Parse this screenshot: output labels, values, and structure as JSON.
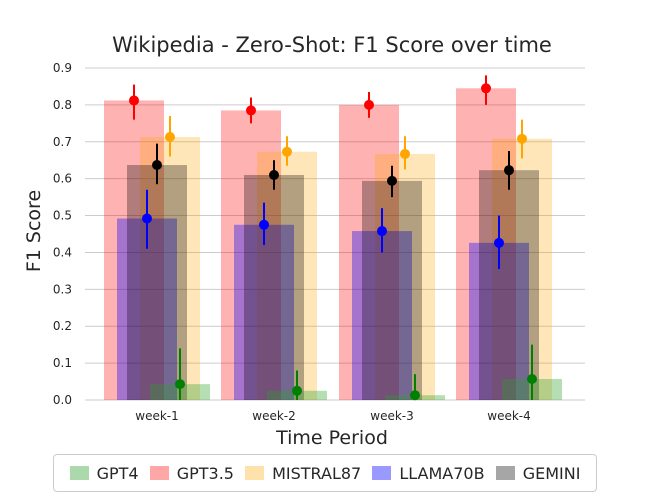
{
  "chart_data": {
    "type": "bar",
    "title": "Wikipedia - Zero-Shot: F1 Score over time",
    "xlabel": "Time Period",
    "ylabel": "F1 Score",
    "categories": [
      "week-1",
      "week-2",
      "week-3",
      "week-4"
    ],
    "ylim": [
      0,
      0.9
    ],
    "yticks": [
      "0.0",
      "0.1",
      "0.2",
      "0.3",
      "0.4",
      "0.5",
      "0.6",
      "0.7",
      "0.8",
      "0.9"
    ],
    "grid": "horizontal",
    "legend_position": "bottom",
    "series": [
      {
        "name": "GPT4",
        "color": "#2ca02c",
        "point_color": "#008000",
        "values": [
          0.043,
          0.025,
          0.013,
          0.057
        ],
        "err_low": [
          0.0,
          0.0,
          0.0,
          0.0
        ],
        "err_high": [
          0.14,
          0.08,
          0.07,
          0.15
        ]
      },
      {
        "name": "GPT3.5",
        "color": "#ff0000",
        "point_color": "#ff0000",
        "values": [
          0.812,
          0.785,
          0.8,
          0.845
        ],
        "err_low": [
          0.76,
          0.75,
          0.765,
          0.8
        ],
        "err_high": [
          0.855,
          0.82,
          0.835,
          0.88
        ]
      },
      {
        "name": "MISTRAL87",
        "color": "#ffa500",
        "point_color": "#ffa500",
        "values": [
          0.713,
          0.673,
          0.667,
          0.708
        ],
        "err_low": [
          0.66,
          0.635,
          0.625,
          0.655
        ],
        "err_high": [
          0.77,
          0.715,
          0.715,
          0.76
        ]
      },
      {
        "name": "LLAMA70B",
        "color": "#0000ff",
        "point_color": "#0000ff",
        "values": [
          0.492,
          0.475,
          0.458,
          0.426
        ],
        "err_low": [
          0.41,
          0.42,
          0.4,
          0.355
        ],
        "err_high": [
          0.57,
          0.535,
          0.52,
          0.5
        ]
      },
      {
        "name": "GEMINI",
        "color": "#000000",
        "point_color": "#000000",
        "values": [
          0.637,
          0.61,
          0.594,
          0.623
        ],
        "err_low": [
          0.585,
          0.57,
          0.55,
          0.57
        ],
        "err_high": [
          0.695,
          0.65,
          0.635,
          0.675
        ]
      }
    ]
  }
}
